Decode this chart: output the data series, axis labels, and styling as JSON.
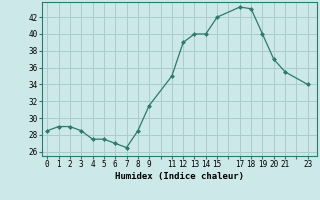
{
  "x": [
    0,
    1,
    2,
    3,
    4,
    5,
    6,
    7,
    8,
    9,
    11,
    12,
    13,
    14,
    15,
    17,
    18,
    19,
    20,
    21,
    23
  ],
  "y": [
    28.5,
    29,
    29,
    28.5,
    27.5,
    27.5,
    27,
    26.5,
    28.5,
    31.5,
    35,
    39,
    40,
    40,
    42,
    43.2,
    43,
    40,
    37,
    35.5,
    34
  ],
  "line_color": "#2d7a6e",
  "marker_color": "#2d7a6e",
  "bg_color": "#cce8e8",
  "grid_color": "#aacccc",
  "xlabel": "Humidex (Indice chaleur)",
  "xlim": [
    -0.5,
    23.8
  ],
  "ylim": [
    25.5,
    43.8
  ],
  "yticks": [
    26,
    28,
    30,
    32,
    34,
    36,
    38,
    40,
    42
  ],
  "tick_fontsize": 5.5,
  "label_fontsize": 6.5
}
